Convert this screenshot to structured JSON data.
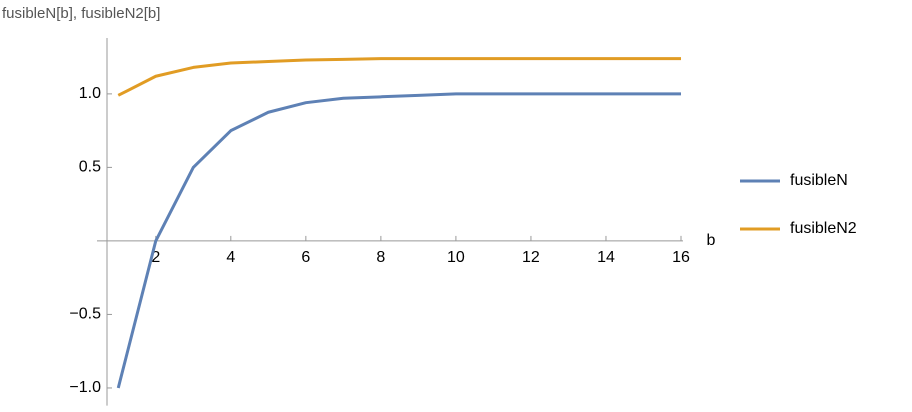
{
  "chart_data": {
    "type": "line",
    "title": "fusibleN[b], fusibleN2[b]",
    "x_label": "b",
    "x": [
      1,
      2,
      3,
      4,
      5,
      6,
      7,
      8,
      9,
      10,
      11,
      12,
      13,
      14,
      15,
      16
    ],
    "series": [
      {
        "name": "fusibleN",
        "color": "#5e81b5",
        "values": [
          -1,
          0,
          0.5,
          0.75,
          0.875,
          0.94,
          0.97,
          0.98,
          0.99,
          1.0,
          1.0,
          1.0,
          1.0,
          1.0,
          1.0,
          1.0
        ]
      },
      {
        "name": "fusibleN2",
        "color": "#e19c24",
        "values": [
          0.99,
          1.12,
          1.18,
          1.21,
          1.22,
          1.23,
          1.235,
          1.24,
          1.24,
          1.24,
          1.24,
          1.24,
          1.24,
          1.24,
          1.24,
          1.24
        ]
      }
    ],
    "xlim": [
      0.7,
      16
    ],
    "ylim": [
      -1.12,
      1.38
    ],
    "xticks": [
      2,
      4,
      6,
      8,
      10,
      12,
      14,
      16
    ],
    "yticks": [
      {
        "value": -1,
        "label": "−1.0"
      },
      {
        "value": -0.5,
        "label": "−0.5"
      },
      0.5,
      {
        "value": 1,
        "label": "1.0"
      }
    ],
    "legend": "right"
  }
}
